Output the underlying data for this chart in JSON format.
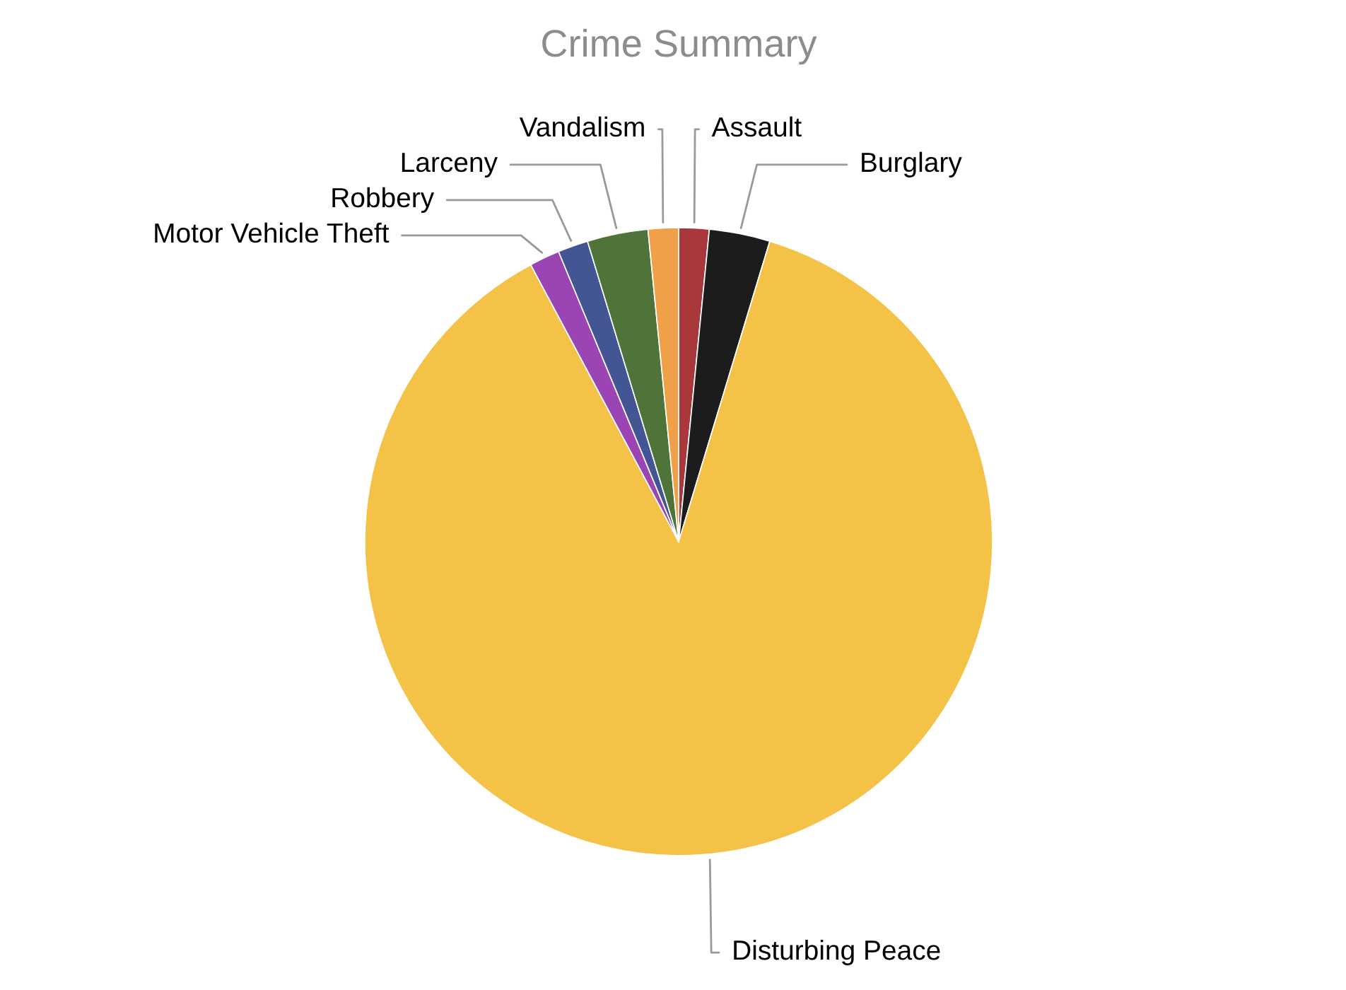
{
  "chart_data": {
    "type": "pie",
    "title": "Crime Summary",
    "categories": [
      "Assault",
      "Burglary",
      "Disturbing Peace",
      "Motor Vehicle Theft",
      "Robbery",
      "Larceny",
      "Vandalism"
    ],
    "values": [
      1.56,
      3.13,
      87.5,
      1.56,
      1.56,
      3.13,
      1.56
    ],
    "colors": [
      "#a9383d",
      "#1c1c1c",
      "#f4c246",
      "#9b45b5",
      "#435592",
      "#50733a",
      "#f0a049"
    ]
  }
}
